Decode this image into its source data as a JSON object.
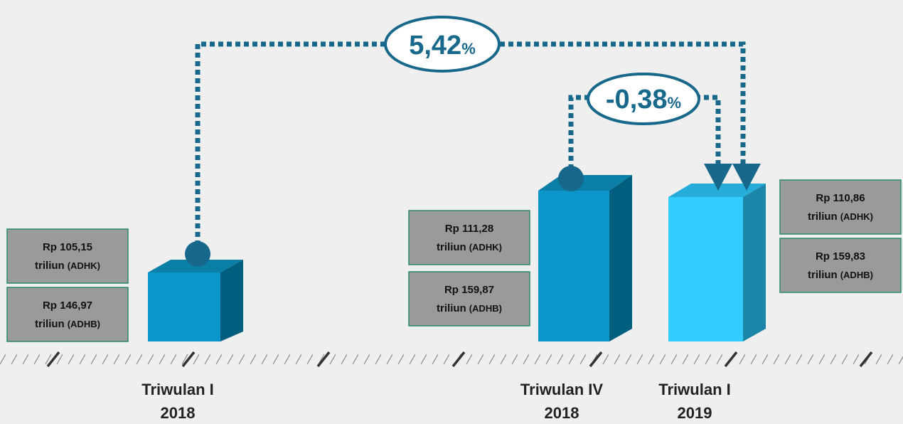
{
  "growth_yoy": {
    "value": "5,42",
    "unit": "%"
  },
  "growth_qoq": {
    "value": "-0,38",
    "unit": "%"
  },
  "periods": [
    {
      "label": "Triwulan I",
      "year": "2018",
      "adhk": {
        "amount": "Rp 105,15",
        "unit": "triliun",
        "tag": "(ADHK)"
      },
      "adhb": {
        "amount": "Rp 146,97",
        "unit": "triliun",
        "tag": "(ADHB)"
      }
    },
    {
      "label": "Triwulan IV",
      "year": "2018",
      "adhk": {
        "amount": "Rp 111,28",
        "unit": "triliun",
        "tag": "(ADHK)"
      },
      "adhb": {
        "amount": "Rp 159,87",
        "unit": "triliun",
        "tag": "(ADHB)"
      }
    },
    {
      "label": "Triwulan I",
      "year": "2019",
      "adhk": {
        "amount": "Rp 110,86",
        "unit": "triliun",
        "tag": "(ADHK)"
      },
      "adhb": {
        "amount": "Rp 159,83",
        "unit": "triliun",
        "tag": "(ADHB)"
      }
    }
  ]
}
